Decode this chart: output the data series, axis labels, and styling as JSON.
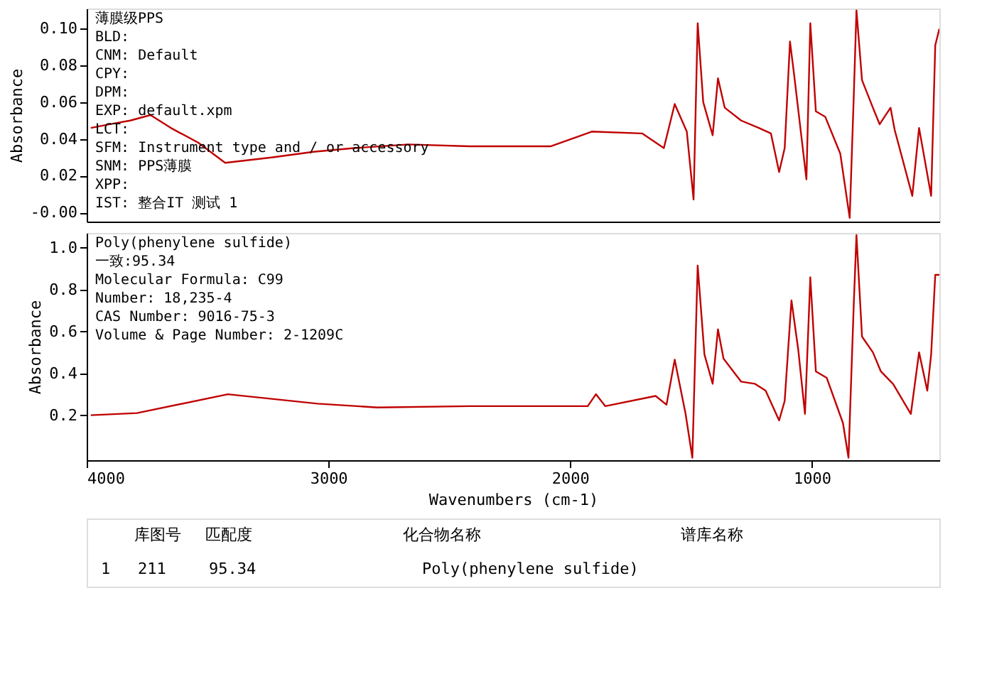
{
  "chart_data": [
    {
      "type": "line",
      "ylabel": "Absorbance",
      "tick_labels": "y",
      "xlim": [
        4000,
        472
      ],
      "ylim": [
        -0.005,
        0.111
      ],
      "yticks": [
        {
          "value": 0.1,
          "label": "0.10"
        },
        {
          "value": 0.08,
          "label": "0.08"
        },
        {
          "value": 0.06,
          "label": "0.06"
        },
        {
          "value": 0.04,
          "label": "0.04"
        },
        {
          "value": 0.02,
          "label": "0.02"
        },
        {
          "value": 0,
          "label": "-0.00"
        }
      ],
      "annotations": [
        "薄膜级PPS",
        "BLD:",
        "CNM: Default",
        "CPY:",
        "DPM:",
        "EXP: default.xpm",
        "LCT:",
        "SFM: Instrument type and / or accessory",
        "SNM: PPS薄膜",
        "XPP:",
        "IST: 整合IT 测试 1"
      ],
      "series": [
        {
          "color": "#c00000",
          "x": [
            3983,
            3904,
            3820,
            3736,
            3652,
            3539,
            3427,
            3230,
            3062,
            2893,
            2669,
            2416,
            2079,
            1910,
            1702,
            1612,
            1567,
            1517,
            1489,
            1472,
            1449,
            1410,
            1388,
            1360,
            1292,
            1219,
            1169,
            1135,
            1112,
            1090,
            1073,
            1022,
            1006,
            983,
            944,
            882,
            843,
            826,
            815,
            792,
            747,
            719,
            674,
            657,
            584,
            556,
            506,
            489,
            472
          ],
          "values": [
            0.046,
            0.048,
            0.05,
            0.053,
            0.046,
            0.038,
            0.027,
            0.03,
            0.033,
            0.035,
            0.037,
            0.036,
            0.036,
            0.044,
            0.043,
            0.035,
            0.059,
            0.044,
            0.007,
            0.103,
            0.06,
            0.042,
            0.073,
            0.057,
            0.05,
            0.046,
            0.043,
            0.022,
            0.035,
            0.093,
            0.075,
            0.018,
            0.103,
            0.055,
            0.052,
            0.032,
            -0.003,
            0.064,
            0.11,
            0.072,
            0.057,
            0.048,
            0.057,
            0.045,
            0.009,
            0.046,
            0.009,
            0.091,
            0.1
          ]
        }
      ]
    },
    {
      "type": "line",
      "ylabel": "Absorbance",
      "xlabel": "Wavenumbers (cm-1)",
      "xlim": [
        4000,
        472
      ],
      "ylim": [
        -0.015,
        1.07
      ],
      "xticks": [
        {
          "value": 4000,
          "label": "4000"
        },
        {
          "value": 3000,
          "label": "3000"
        },
        {
          "value": 2000,
          "label": "2000"
        },
        {
          "value": 1000,
          "label": "1000"
        }
      ],
      "yticks": [
        {
          "value": 1,
          "label": "1.0"
        },
        {
          "value": 0.8,
          "label": "0.8"
        },
        {
          "value": 0.6,
          "label": "0.6"
        },
        {
          "value": 0.4,
          "label": "0.4"
        },
        {
          "value": 0.2,
          "label": "0.2"
        }
      ],
      "annotations": [
        "Poly(phenylene sulfide)",
        "一致:95.34",
        "Molecular Formula: C99",
        "Number:    18,235-4",
        "CAS Number:     9016-75-3",
        "Volume & Page Number:  2-1209C"
      ],
      "series": [
        {
          "color": "#c00000",
          "x": [
            3983,
            3792,
            3416,
            3045,
            2798,
            2416,
            1927,
            1893,
            1854,
            1646,
            1601,
            1567,
            1522,
            1494,
            1472,
            1444,
            1410,
            1388,
            1365,
            1292,
            1236,
            1191,
            1135,
            1112,
            1084,
            1056,
            1028,
            1006,
            983,
            938,
            871,
            848,
            826,
            815,
            792,
            747,
            714,
            663,
            590,
            556,
            522,
            506,
            489,
            472
          ],
          "values": [
            0.2,
            0.21,
            0.3,
            0.255,
            0.237,
            0.243,
            0.243,
            0.3,
            0.243,
            0.292,
            0.25,
            0.465,
            0.206,
            -0.003,
            0.914,
            0.49,
            0.35,
            0.61,
            0.47,
            0.36,
            0.35,
            0.317,
            0.175,
            0.268,
            0.748,
            0.514,
            0.206,
            0.858,
            0.409,
            0.378,
            0.163,
            -0.003,
            0.735,
            1.06,
            0.575,
            0.5,
            0.409,
            0.348,
            0.206,
            0.5,
            0.317,
            0.49,
            0.87,
            0.87
          ]
        }
      ]
    },
    {
      "type": "other",
      "annotations": [
        "库图号",
        "匹配度",
        "化合物名称",
        "谱库名称",
        "1",
        "211",
        "95.34",
        "Poly(phenylene sulfide)"
      ]
    }
  ]
}
